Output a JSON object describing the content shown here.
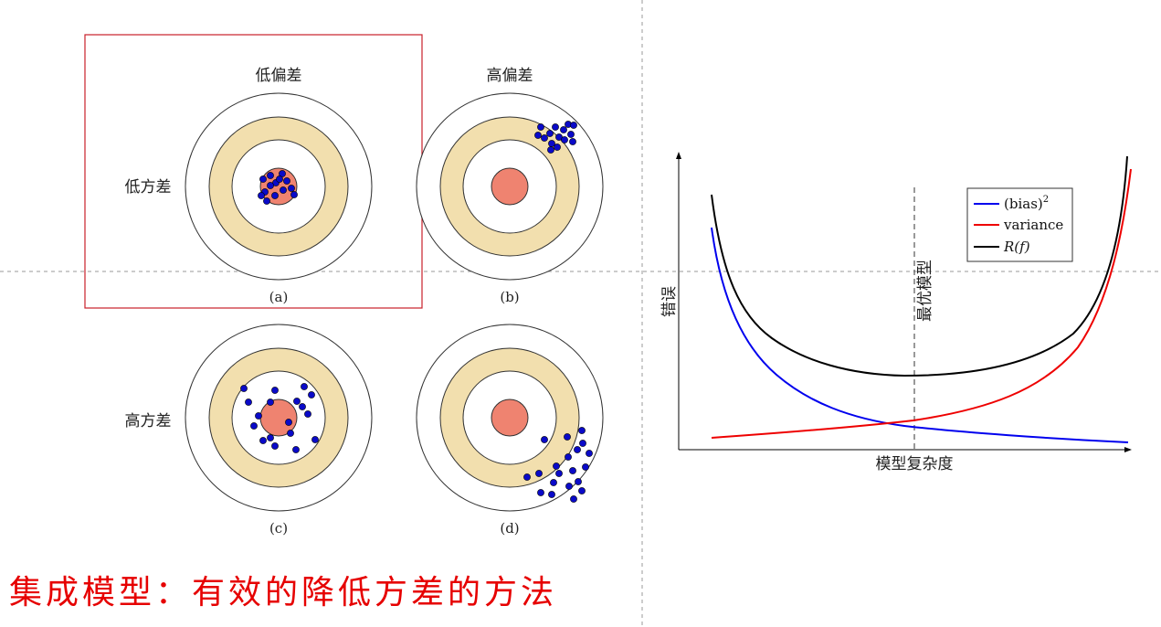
{
  "colors": {
    "ring_outer": "#ffffff",
    "ring_mid": "#f2dfae",
    "bullseye": "#ef8370",
    "dots": "#0a0ac8",
    "selection_box": "#c8202a",
    "guide_lines": "#999999",
    "slogan": "#e60000",
    "bias_curve": "#0000ee",
    "variance_curve": "#ee0000",
    "risk_curve": "#000000"
  },
  "targets": {
    "col_labels": [
      "低偏差",
      "高偏差"
    ],
    "row_labels": [
      "低方差",
      "高方差"
    ],
    "captions": [
      "(a)",
      "(b)",
      "(c)",
      "(d)"
    ]
  },
  "curve_chart": {
    "ylabel": "错误",
    "xlabel": "模型复杂度",
    "optimal_label": "最优模型",
    "legend": [
      {
        "label": "(bias)",
        "sup": "2",
        "color": "#0000ee"
      },
      {
        "label": "variance",
        "sup": "",
        "color": "#ee0000"
      },
      {
        "label": "R(f)",
        "sup": "",
        "color": "#000000"
      }
    ]
  },
  "slogan": "集成模型：有效的降低方差的方法"
}
